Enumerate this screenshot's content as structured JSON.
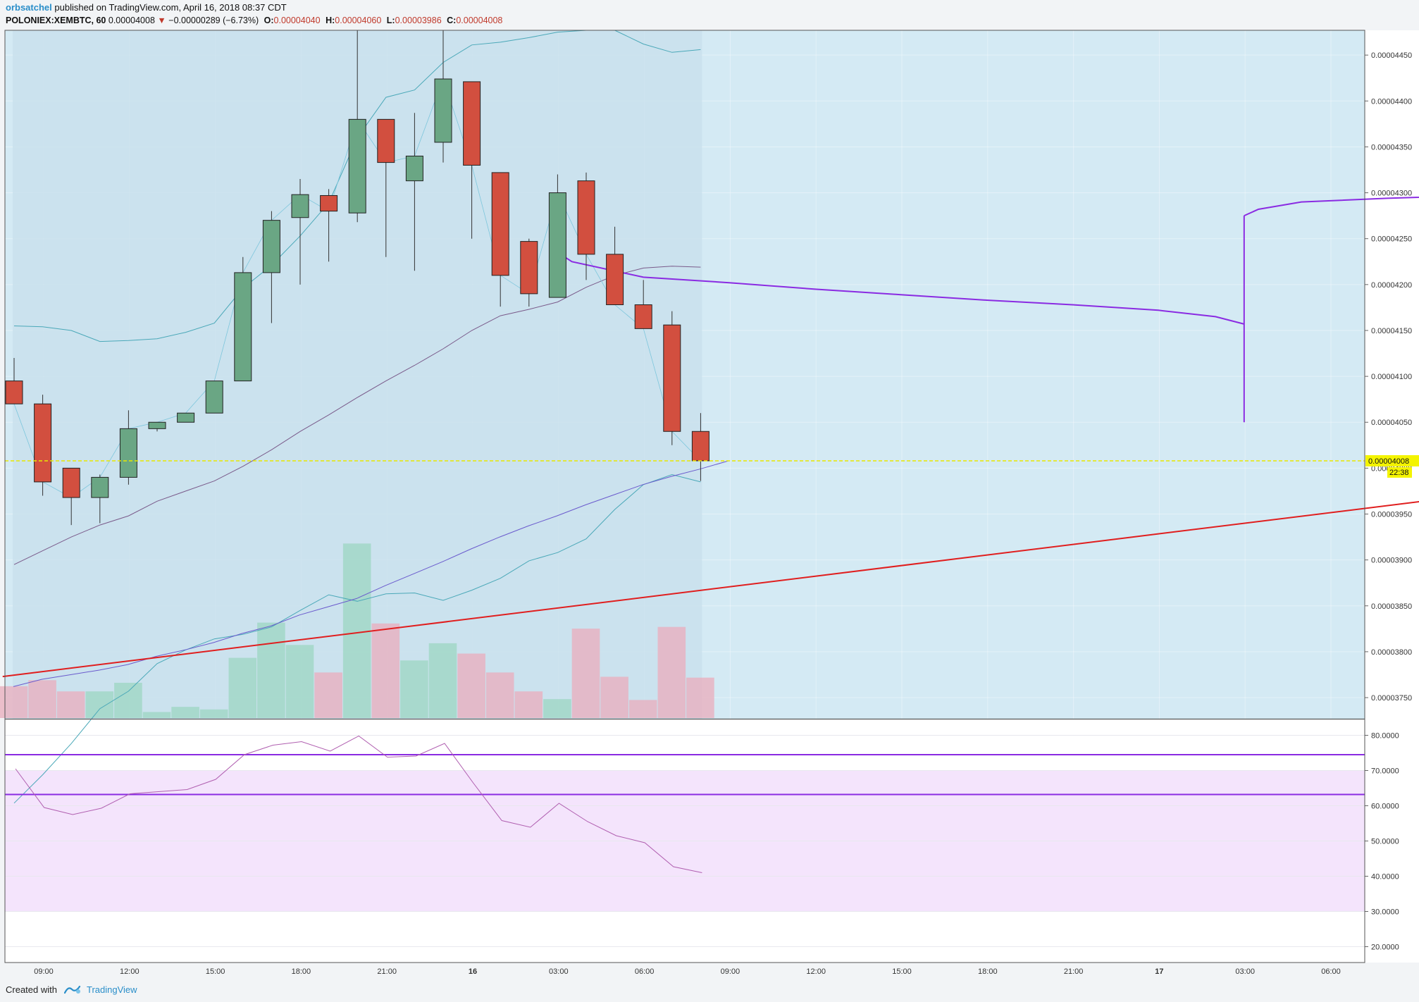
{
  "header": {
    "author": "orbsatchel",
    "published_text": "published on TradingView.com, April 16, 2018 08:37 CDT",
    "symbol": "POLONIEX:XEMBTC, 60",
    "last_price": "0.00004008",
    "change_arrow": "▼",
    "change": "−0.00000289 (−6.73%)",
    "open_label": "O:",
    "open": "0.00004040",
    "high_label": "H:",
    "high": "0.00004060",
    "low_label": "L:",
    "low": "0.00003986",
    "close_label": "C:",
    "close": "0.00004008"
  },
  "footer": {
    "created_with": "Created with",
    "brand": "TradingView"
  },
  "colors": {
    "up": "#6aa684",
    "down": "#d24f3f",
    "background": "#d4eaf4",
    "shaded": "#c8e0ec",
    "trendline": "#e01e1e",
    "vwap": "#8a2be2",
    "rsi_line": "#b05fb0",
    "rsi_band": "#f4e4fc",
    "price_line": "#e8e800"
  },
  "chart_data": [
    {
      "type": "candlestick",
      "title": "",
      "x_ticks": [
        "09:00",
        "12:00",
        "15:00",
        "18:00",
        "21:00",
        "16",
        "03:00",
        "06:00",
        "09:00",
        "12:00",
        "15:00",
        "18:00",
        "21:00",
        "17",
        "03:00",
        "06:00"
      ],
      "y_ticks": [
        "0.00004450",
        "0.00004400",
        "0.00004350",
        "0.00004300",
        "0.00004250",
        "0.00004200",
        "0.00004150",
        "0.00004100",
        "0.00004050",
        "0.00004000",
        "0.00003950",
        "0.00003900",
        "0.00003850",
        "0.00003800",
        "0.00003750"
      ],
      "ylim": [
        3.727e-05,
        4.477e-05
      ],
      "current_price_label": "0.00004008",
      "countdown_label": "22:38",
      "candles": [
        {
          "t": "08:00",
          "o": 4.095e-05,
          "h": 4.12e-05,
          "l": 4.07e-05,
          "c": 4.07e-05
        },
        {
          "t": "09:00",
          "o": 4.07e-05,
          "h": 4.08e-05,
          "l": 3.97e-05,
          "c": 3.985e-05
        },
        {
          "t": "10:00",
          "o": 4e-05,
          "h": 4e-05,
          "l": 3.938e-05,
          "c": 3.968e-05
        },
        {
          "t": "11:00",
          "o": 3.968e-05,
          "h": 3.993e-05,
          "l": 3.94e-05,
          "c": 3.99e-05
        },
        {
          "t": "12:00",
          "o": 3.99e-05,
          "h": 4.063e-05,
          "l": 3.982e-05,
          "c": 4.043e-05
        },
        {
          "t": "13:00",
          "o": 4.043e-05,
          "h": 4.05e-05,
          "l": 4.04e-05,
          "c": 4.05e-05
        },
        {
          "t": "14:00",
          "o": 4.05e-05,
          "h": 4.06e-05,
          "l": 4.05e-05,
          "c": 4.06e-05
        },
        {
          "t": "15:00",
          "o": 4.06e-05,
          "h": 4.095e-05,
          "l": 4.06e-05,
          "c": 4.095e-05
        },
        {
          "t": "16:00",
          "o": 4.095e-05,
          "h": 4.23e-05,
          "l": 4.095e-05,
          "c": 4.213e-05
        },
        {
          "t": "17:00",
          "o": 4.213e-05,
          "h": 4.28e-05,
          "l": 4.158e-05,
          "c": 4.27e-05
        },
        {
          "t": "18:00",
          "o": 4.273e-05,
          "h": 4.315e-05,
          "l": 4.2e-05,
          "c": 4.298e-05
        },
        {
          "t": "19:00",
          "o": 4.297e-05,
          "h": 4.304e-05,
          "l": 4.225e-05,
          "c": 4.28e-05
        },
        {
          "t": "20:00",
          "o": 4.278e-05,
          "h": 4.477e-05,
          "l": 4.268e-05,
          "c": 4.38e-05
        },
        {
          "t": "21:00",
          "o": 4.38e-05,
          "h": 4.38e-05,
          "l": 4.23e-05,
          "c": 4.333e-05
        },
        {
          "t": "22:00",
          "o": 4.313e-05,
          "h": 4.387e-05,
          "l": 4.215e-05,
          "c": 4.34e-05
        },
        {
          "t": "23:00",
          "o": 4.355e-05,
          "h": 4.477e-05,
          "l": 4.333e-05,
          "c": 4.424e-05
        },
        {
          "t": "00:00",
          "o": 4.421e-05,
          "h": 4.421e-05,
          "l": 4.25e-05,
          "c": 4.33e-05
        },
        {
          "t": "01:00",
          "o": 4.322e-05,
          "h": 4.322e-05,
          "l": 4.176e-05,
          "c": 4.21e-05
        },
        {
          "t": "02:00",
          "o": 4.247e-05,
          "h": 4.25e-05,
          "l": 4.176e-05,
          "c": 4.19e-05
        },
        {
          "t": "03:00",
          "o": 4.186e-05,
          "h": 4.32e-05,
          "l": 4.186e-05,
          "c": 4.3e-05
        },
        {
          "t": "04:00",
          "o": 4.313e-05,
          "h": 4.322e-05,
          "l": 4.205e-05,
          "c": 4.233e-05
        },
        {
          "t": "05:00",
          "o": 4.233e-05,
          "h": 4.263e-05,
          "l": 4.178e-05,
          "c": 4.178e-05
        },
        {
          "t": "06:00",
          "o": 4.178e-05,
          "h": 4.205e-05,
          "l": 4.152e-05,
          "c": 4.152e-05
        },
        {
          "t": "07:00",
          "o": 4.156e-05,
          "h": 4.171e-05,
          "l": 4.025e-05,
          "c": 4.04e-05
        },
        {
          "t": "08:00",
          "o": 4.04e-05,
          "h": 4.06e-05,
          "l": 3.986e-05,
          "c": 4.008e-05
        }
      ],
      "volume_rel": [
        0.37,
        0.44,
        0.31,
        0.31,
        0.41,
        0.07,
        0.13,
        0.1,
        0.7,
        1.11,
        0.85,
        0.53,
        2.03,
        1.1,
        0.67,
        0.87,
        0.75,
        0.53,
        0.31,
        0.22,
        1.04,
        0.48,
        0.21,
        1.06,
        0.47
      ],
      "bollinger_upper": [
        4.155e-05,
        4.154e-05,
        4.15e-05,
        4.138e-05,
        4.139e-05,
        4.141e-05,
        4.148e-05,
        4.158e-05,
        4.196e-05,
        4.221e-05,
        4.253e-05,
        4.289e-05,
        4.36e-05,
        4.404e-05,
        4.412e-05,
        4.442e-05,
        4.461e-05,
        4.464e-05,
        4.469e-05,
        4.475e-05,
        4.477e-05,
        4.477e-05,
        4.462e-05,
        4.453e-05,
        4.456e-05
      ],
      "bollinger_basis": [
        3.895e-05,
        3.91e-05,
        3.925e-05,
        3.938e-05,
        3.948e-05,
        3.964e-05,
        3.975e-05,
        3.986e-05,
        4.002e-05,
        4.02e-05,
        4.04e-05,
        4.058e-05,
        4.077e-05,
        4.095e-05,
        4.112e-05,
        4.13e-05,
        4.15e-05,
        4.166e-05,
        4.173e-05,
        4.181e-05,
        4.197e-05,
        4.21e-05,
        4.218e-05,
        4.22e-05,
        4.219e-05
      ],
      "bollinger_lower": [
        3.635e-05,
        3.666e-05,
        3.7e-05,
        3.738e-05,
        3.757e-05,
        3.787e-05,
        3.802e-05,
        3.814e-05,
        3.819e-05,
        3.827e-05,
        3.845e-05,
        3.862e-05,
        3.855e-05,
        3.863e-05,
        3.864e-05,
        3.856e-05,
        3.867e-05,
        3.88e-05,
        3.899e-05,
        3.908e-05,
        3.923e-05,
        3.955e-05,
        3.982e-05,
        3.993e-05,
        3.985e-05
      ],
      "ma": [
        3.762e-05,
        3.77e-05,
        3.775e-05,
        3.78e-05,
        3.786e-05,
        3.795e-05,
        3.802e-05,
        3.81e-05,
        3.82e-05,
        3.828e-05,
        3.84e-05,
        3.849e-05,
        3.858e-05,
        3.872e-05,
        3.885e-05,
        3.898e-05,
        3.912e-05,
        3.925e-05,
        3.937e-05,
        3.948e-05,
        3.96e-05,
        3.971e-05,
        3.982e-05,
        3.991e-05,
        3.999e-05,
        4.008e-05
      ],
      "anchored_vwap": [
        [
          19,
          4.235e-05
        ],
        [
          19.5,
          4.225e-05
        ],
        [
          22,
          4.208e-05
        ],
        [
          25,
          4.202e-05
        ],
        [
          28,
          4.195e-05
        ],
        [
          31,
          4.189e-05
        ],
        [
          34,
          4.183e-05
        ],
        [
          37,
          4.178e-05
        ],
        [
          40,
          4.172e-05
        ],
        [
          42,
          4.165e-05
        ],
        [
          43,
          4.157e-05
        ]
      ],
      "vwap_jump": {
        "x": 43,
        "from": 4.05e-05,
        "to": 4.275e-05
      },
      "vwap_upper": [
        [
          43,
          4.275e-05
        ],
        [
          43.5,
          4.282e-05
        ],
        [
          45,
          4.29e-05
        ],
        [
          48,
          4.294e-05
        ],
        [
          52,
          4.298e-05
        ],
        [
          56,
          4.3e-05
        ],
        [
          60,
          4.303e-05
        ],
        [
          62,
          4.306e-05
        ]
      ],
      "trendline": [
        [
          -0.4,
          3.773e-05
        ],
        [
          62,
          4.013e-05
        ]
      ],
      "price_line": 4.008e-05
    },
    {
      "type": "line",
      "title": "",
      "y_ticks": [
        "80.0000",
        "70.0000",
        "60.0000",
        "50.0000",
        "40.0000",
        "30.0000",
        "20.0000"
      ],
      "ylim": [
        15.5,
        84.5
      ],
      "band": [
        30,
        70
      ],
      "hlines": [
        74.5,
        63.2
      ],
      "values": [
        70.5,
        59.5,
        57.5,
        59.3,
        63.4,
        64.0,
        64.6,
        67.5,
        74.5,
        77.2,
        78.2,
        75.5,
        79.8,
        73.8,
        74.1,
        77.7,
        66.5,
        55.8,
        53.9,
        60.7,
        55.5,
        51.5,
        49.5,
        42.7,
        41.0
      ]
    }
  ]
}
